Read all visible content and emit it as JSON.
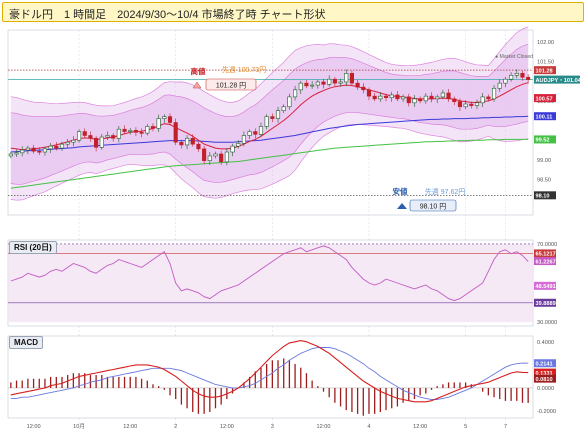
{
  "header": {
    "title": "豪ドル円　1 時間足　2024/9/30～10/4 市場終了時 チャート形状"
  },
  "market_status": "● Market Closed",
  "colors": {
    "price_up": "#1f5c2a",
    "price_down": "#c0202a",
    "ma_short": "#d7213a",
    "ma_mid": "#3a3ad8",
    "ma_long": "#44c144",
    "band_fill": "#e7c3ef",
    "band_line": "#d66ad6",
    "rsi_line": "#c45bc4",
    "macd_line": "#d71f1f",
    "signal_line": "#6a78e0",
    "hist_pos": "#9c1d1d",
    "hist_neg": "#9c1d1d"
  },
  "annotations": {
    "high_label": "高値",
    "high_week_label": "先週 100.73円",
    "high_value_label": "101.28 円",
    "low_label": "安値",
    "low_week_label": "先週 97.62円",
    "low_value_label": "98.10 円"
  },
  "chart_data": [
    {
      "type": "line",
      "title": "",
      "subtype": "candlestick",
      "ylim": [
        97.6,
        102.3
      ],
      "y_ticks": [
        "102.00",
        "101.50",
        "100.50",
        "99.50",
        "99.00",
        "98.50"
      ],
      "y_markers": [
        {
          "value": 101.28,
          "label": "101.28",
          "color": "#c83a3a"
        },
        {
          "value": 101.04,
          "label": "AUDJPY・101.04",
          "color": "#2a8a8a"
        },
        {
          "value": 100.57,
          "label": "100.57",
          "color": "#d7213a"
        },
        {
          "value": 100.11,
          "label": "100.11",
          "color": "#3a3ad8"
        },
        {
          "value": 99.52,
          "label": "99.52",
          "color": "#44c144"
        },
        {
          "value": 98.1,
          "label": "98.10",
          "color": "#333333"
        }
      ],
      "reference_lines": [
        101.28,
        101.04,
        98.1
      ],
      "close": [
        99.15,
        99.18,
        99.25,
        99.3,
        99.22,
        99.2,
        99.28,
        99.35,
        99.3,
        99.4,
        99.45,
        99.5,
        99.72,
        99.62,
        99.55,
        99.32,
        99.58,
        99.62,
        99.55,
        99.78,
        99.72,
        99.75,
        99.7,
        99.68,
        99.85,
        99.8,
        100.05,
        100.1,
        99.95,
        99.45,
        99.38,
        99.55,
        99.4,
        99.28,
        98.98,
        99.1,
        99.15,
        98.95,
        99.2,
        99.35,
        99.42,
        99.62,
        99.72,
        99.65,
        99.85,
        100.1,
        100.05,
        100.25,
        100.35,
        100.6,
        100.78,
        100.95,
        100.88,
        100.9,
        100.98,
        100.92,
        101.05,
        100.95,
        100.98,
        101.2,
        100.95,
        100.85,
        100.78,
        100.62,
        100.55,
        100.62,
        100.58,
        100.65,
        100.55,
        100.6,
        100.45,
        100.55,
        100.5,
        100.62,
        100.55,
        100.6,
        100.7,
        100.55,
        100.48,
        100.35,
        100.42,
        100.38,
        100.45,
        100.6,
        100.55,
        100.82,
        100.95,
        101.05,
        101.15,
        101.2,
        101.1,
        101.04
      ],
      "ma_short": [
        99.3,
        99.28,
        99.26,
        99.27,
        99.28,
        99.3,
        99.32,
        99.35,
        99.38,
        99.42,
        99.46,
        99.5,
        99.54,
        99.56,
        99.55,
        99.52,
        99.53,
        99.56,
        99.58,
        99.62,
        99.66,
        99.7,
        99.72,
        99.73,
        99.76,
        99.8,
        99.86,
        99.92,
        99.9,
        99.82,
        99.75,
        99.68,
        99.6,
        99.5,
        99.4,
        99.35,
        99.3,
        99.28,
        99.28,
        99.3,
        99.34,
        99.4,
        99.47,
        99.52,
        99.6,
        99.7,
        99.8,
        99.9,
        100.0,
        100.12,
        100.26,
        100.4,
        100.52,
        100.62,
        100.7,
        100.76,
        100.82,
        100.86,
        100.88,
        100.9,
        100.89,
        100.86,
        100.82,
        100.78,
        100.74,
        100.7,
        100.66,
        100.63,
        100.61,
        100.6,
        100.58,
        100.56,
        100.55,
        100.55,
        100.55,
        100.56,
        100.57,
        100.56,
        100.54,
        100.5,
        100.48,
        100.46,
        100.46,
        100.48,
        100.5,
        100.55,
        100.62,
        100.7,
        100.78,
        100.86,
        100.92,
        100.96
      ],
      "ma_mid": [
        99.2,
        99.21,
        99.22,
        99.23,
        99.24,
        99.25,
        99.26,
        99.27,
        99.28,
        99.29,
        99.3,
        99.31,
        99.33,
        99.34,
        99.35,
        99.36,
        99.37,
        99.38,
        99.39,
        99.4,
        99.41,
        99.42,
        99.43,
        99.44,
        99.45,
        99.46,
        99.47,
        99.48,
        99.49,
        99.49,
        99.49,
        99.49,
        99.49,
        99.48,
        99.47,
        99.46,
        99.45,
        99.45,
        99.45,
        99.45,
        99.46,
        99.47,
        99.48,
        99.49,
        99.5,
        99.52,
        99.54,
        99.56,
        99.58,
        99.6,
        99.62,
        99.65,
        99.68,
        99.71,
        99.74,
        99.77,
        99.8,
        99.82,
        99.84,
        99.86,
        99.88,
        99.9,
        99.91,
        99.92,
        99.93,
        99.94,
        99.95,
        99.96,
        99.97,
        99.98,
        99.99,
        100.0,
        100.01,
        100.02,
        100.03,
        100.03,
        100.04,
        100.04,
        100.05,
        100.05,
        100.05,
        100.06,
        100.06,
        100.07,
        100.07,
        100.08,
        100.08,
        100.09,
        100.09,
        100.1,
        100.1,
        100.11
      ],
      "ma_long": [
        98.28,
        98.3,
        98.32,
        98.34,
        98.36,
        98.38,
        98.4,
        98.42,
        98.44,
        98.46,
        98.48,
        98.5,
        98.52,
        98.54,
        98.56,
        98.58,
        98.6,
        98.62,
        98.64,
        98.66,
        98.68,
        98.7,
        98.72,
        98.74,
        98.76,
        98.78,
        98.8,
        98.82,
        98.84,
        98.85,
        98.86,
        98.87,
        98.88,
        98.89,
        98.9,
        98.91,
        98.92,
        98.93,
        98.94,
        98.95,
        98.96,
        98.98,
        99.0,
        99.02,
        99.04,
        99.06,
        99.08,
        99.1,
        99.12,
        99.14,
        99.16,
        99.18,
        99.2,
        99.22,
        99.24,
        99.26,
        99.28,
        99.3,
        99.31,
        99.32,
        99.33,
        99.34,
        99.35,
        99.36,
        99.37,
        99.38,
        99.39,
        99.4,
        99.41,
        99.42,
        99.43,
        99.44,
        99.45,
        99.46,
        99.46,
        99.47,
        99.47,
        99.48,
        99.48,
        99.49,
        99.49,
        99.5,
        99.5,
        99.5,
        99.51,
        99.51,
        99.51,
        99.52,
        99.52,
        99.52,
        99.52,
        99.52
      ],
      "band_width": [
        0.9,
        0.9,
        0.88,
        0.85,
        0.82,
        0.8,
        0.78,
        0.75,
        0.72,
        0.7,
        0.68,
        0.66,
        0.64,
        0.62,
        0.6,
        0.6,
        0.58,
        0.56,
        0.55,
        0.55,
        0.55,
        0.56,
        0.58,
        0.6,
        0.62,
        0.65,
        0.68,
        0.72,
        0.75,
        0.8,
        0.85,
        0.88,
        0.9,
        0.92,
        0.92,
        0.9,
        0.88,
        0.85,
        0.82,
        0.8,
        0.8,
        0.82,
        0.85,
        0.88,
        0.92,
        0.95,
        0.98,
        1.0,
        1.02,
        1.05,
        1.05,
        1.0,
        0.95,
        0.9,
        0.85,
        0.8,
        0.78,
        0.75,
        0.72,
        0.7,
        0.68,
        0.66,
        0.64,
        0.62,
        0.6,
        0.58,
        0.56,
        0.55,
        0.55,
        0.55,
        0.56,
        0.58,
        0.6,
        0.62,
        0.64,
        0.66,
        0.68,
        0.7,
        0.72,
        0.72,
        0.7,
        0.68,
        0.66,
        0.64,
        0.62,
        0.7,
        0.78,
        0.85,
        0.9,
        0.95,
        0.97,
        0.98
      ]
    },
    {
      "type": "line",
      "title": "RSI (20日)",
      "ylim": [
        28,
        72
      ],
      "y_ticks": [
        "70.0000",
        "30.0000"
      ],
      "y_markers": [
        {
          "value": 65.1217,
          "label": "65.1217",
          "color": "#c83a3a"
        },
        {
          "value": 61.2267,
          "label": "61.2267",
          "color": "#c45bc4"
        },
        {
          "value": 48.5491,
          "label": "48.5491",
          "color": "#d66ad6"
        },
        {
          "value": 39.8889,
          "label": "39.8889",
          "color": "#6a3a9a"
        }
      ],
      "reference_lines": [
        70,
        65.1217,
        39.8889
      ],
      "values": [
        51,
        52,
        53,
        55,
        54,
        53,
        54,
        56,
        57,
        56,
        58,
        60,
        59,
        58,
        56,
        55,
        57,
        59,
        60,
        62,
        61,
        60,
        59,
        58,
        60,
        62,
        64,
        66,
        60,
        50,
        46,
        47,
        46,
        45,
        43,
        42,
        44,
        46,
        47,
        48,
        49,
        51,
        53,
        55,
        57,
        59,
        61,
        63,
        65,
        66,
        67,
        68,
        66,
        67,
        68,
        69,
        68,
        66,
        64,
        62,
        58,
        55,
        52,
        50,
        49,
        50,
        52,
        51,
        50,
        49,
        48,
        47,
        48,
        49,
        47,
        46,
        44,
        42,
        41,
        42,
        44,
        46,
        48,
        50,
        56,
        62,
        66,
        67,
        65,
        66,
        64,
        61
      ]
    },
    {
      "type": "line",
      "title": "MACD",
      "ylim": [
        -0.26,
        0.45
      ],
      "y_ticks": [
        "0.4000",
        "0.2000",
        "0.0000",
        "-0.2000"
      ],
      "y_markers": [
        {
          "value": 0.2141,
          "label": "0.2141",
          "color": "#6a78e0"
        },
        {
          "value": 0.1331,
          "label": "0.1331",
          "color": "#d71f1f"
        },
        {
          "value": 0.081,
          "label": "0.0810",
          "color": "#9c1d1d"
        }
      ],
      "macd": [
        -0.06,
        -0.05,
        -0.04,
        -0.03,
        -0.02,
        -0.01,
        0.0,
        0.02,
        0.03,
        0.04,
        0.06,
        0.08,
        0.1,
        0.11,
        0.12,
        0.13,
        0.14,
        0.15,
        0.16,
        0.17,
        0.18,
        0.19,
        0.2,
        0.2,
        0.2,
        0.19,
        0.18,
        0.16,
        0.13,
        0.1,
        0.06,
        0.02,
        -0.02,
        -0.05,
        -0.07,
        -0.08,
        -0.08,
        -0.07,
        -0.05,
        -0.03,
        0.0,
        0.04,
        0.08,
        0.13,
        0.18,
        0.23,
        0.28,
        0.32,
        0.36,
        0.39,
        0.4,
        0.41,
        0.4,
        0.38,
        0.36,
        0.33,
        0.3,
        0.26,
        0.22,
        0.18,
        0.14,
        0.1,
        0.06,
        0.03,
        0.0,
        -0.03,
        -0.05,
        -0.07,
        -0.09,
        -0.1,
        -0.11,
        -0.12,
        -0.12,
        -0.12,
        -0.11,
        -0.09,
        -0.07,
        -0.05,
        -0.03,
        -0.01,
        0.01,
        0.02,
        0.03,
        0.04,
        0.05,
        0.07,
        0.09,
        0.11,
        0.13,
        0.14,
        0.135,
        0.1331
      ],
      "signal": [
        -0.09,
        -0.09,
        -0.08,
        -0.08,
        -0.07,
        -0.06,
        -0.05,
        -0.04,
        -0.03,
        -0.02,
        -0.01,
        0.0,
        0.02,
        0.03,
        0.05,
        0.06,
        0.07,
        0.09,
        0.1,
        0.11,
        0.12,
        0.13,
        0.14,
        0.15,
        0.16,
        0.17,
        0.17,
        0.17,
        0.17,
        0.16,
        0.15,
        0.13,
        0.11,
        0.09,
        0.07,
        0.05,
        0.03,
        0.02,
        0.01,
        0.0,
        0.0,
        0.01,
        0.02,
        0.04,
        0.07,
        0.1,
        0.13,
        0.17,
        0.2,
        0.24,
        0.27,
        0.3,
        0.32,
        0.34,
        0.35,
        0.35,
        0.35,
        0.34,
        0.32,
        0.3,
        0.27,
        0.24,
        0.21,
        0.17,
        0.14,
        0.1,
        0.07,
        0.04,
        0.01,
        -0.02,
        -0.04,
        -0.06,
        -0.08,
        -0.09,
        -0.1,
        -0.1,
        -0.09,
        -0.08,
        -0.06,
        -0.04,
        -0.02,
        0.0,
        0.03,
        0.06,
        0.09,
        0.12,
        0.15,
        0.18,
        0.2,
        0.21,
        0.215,
        0.2141
      ]
    }
  ],
  "x_axis": {
    "ticks": [
      {
        "label": "12:00",
        "at": 4
      },
      {
        "label": "10月",
        "at": 12
      },
      {
        "label": "12:00",
        "at": 21
      },
      {
        "label": "2",
        "at": 29
      },
      {
        "label": "12:00",
        "at": 38
      },
      {
        "label": "3",
        "at": 46
      },
      {
        "label": "12:00",
        "at": 55
      },
      {
        "label": "4",
        "at": 63
      },
      {
        "label": "12:00",
        "at": 72
      },
      {
        "label": "5",
        "at": 80
      },
      {
        "label": "7",
        "at": 87
      }
    ]
  }
}
